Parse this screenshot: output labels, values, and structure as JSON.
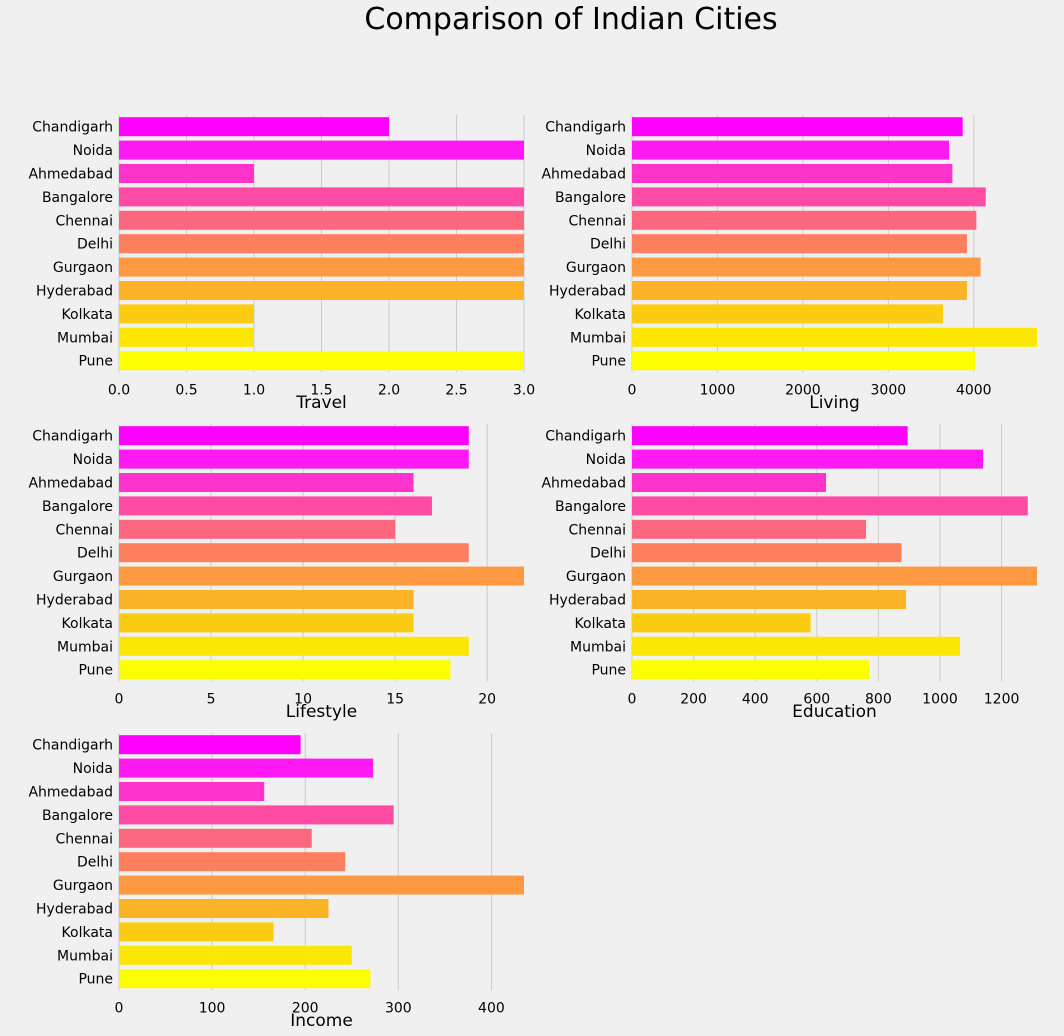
{
  "title": "Comparison of Indian Cities",
  "colors": [
    "#ff00ff",
    "#ff19f4",
    "#fe33cc",
    "#fe4ca5",
    "#fd667f",
    "#fd7f5d",
    "#fd9940",
    "#fcb326",
    "#fccc12",
    "#fce604",
    "#fcff00"
  ],
  "chart_data": [
    {
      "type": "bar",
      "orientation": "horizontal",
      "xlabel": "Travel",
      "categories": [
        "Chandigarh",
        "Noida",
        "Ahmedabad",
        "Bangalore",
        "Chennai",
        "Delhi",
        "Gurgaon",
        "Hyderabad",
        "Kolkata",
        "Mumbai",
        "Pune"
      ],
      "values": [
        2,
        3,
        1,
        3,
        3,
        3,
        3,
        3,
        1,
        1,
        3
      ],
      "xlim": [
        0,
        3
      ],
      "xticks": [
        0,
        0.5,
        1,
        1.5,
        2,
        2.5,
        3
      ],
      "xtick_labels": [
        "0.0",
        "0.5",
        "1.0",
        "1.5",
        "2.0",
        "2.5",
        "3.0"
      ],
      "grid": "vertical"
    },
    {
      "type": "bar",
      "orientation": "horizontal",
      "xlabel": "Living",
      "categories": [
        "Chandigarh",
        "Noida",
        "Ahmedabad",
        "Bangalore",
        "Chennai",
        "Delhi",
        "Gurgaon",
        "Hyderabad",
        "Kolkata",
        "Mumbai",
        "Pune"
      ],
      "values": [
        3870,
        3710,
        3750,
        4140,
        4030,
        3920,
        4080,
        3920,
        3640,
        4740,
        4020
      ],
      "xlim": [
        0,
        4740
      ],
      "xticks": [
        0,
        1000,
        2000,
        3000,
        4000
      ],
      "xtick_labels": [
        "0",
        "1000",
        "2000",
        "3000",
        "4000"
      ],
      "grid": "vertical"
    },
    {
      "type": "bar",
      "orientation": "horizontal",
      "xlabel": "Lifestyle",
      "categories": [
        "Chandigarh",
        "Noida",
        "Ahmedabad",
        "Bangalore",
        "Chennai",
        "Delhi",
        "Gurgaon",
        "Hyderabad",
        "Kolkata",
        "Mumbai",
        "Pune"
      ],
      "values": [
        19,
        19,
        16,
        17,
        15,
        19,
        22,
        16,
        16,
        19,
        18
      ],
      "xlim": [
        0,
        22
      ],
      "xticks": [
        0,
        5,
        10,
        15,
        20
      ],
      "xtick_labels": [
        "0",
        "5",
        "10",
        "15",
        "20"
      ],
      "grid": "vertical"
    },
    {
      "type": "bar",
      "orientation": "horizontal",
      "xlabel": "Education",
      "categories": [
        "Chandigarh",
        "Noida",
        "Ahmedabad",
        "Bangalore",
        "Chennai",
        "Delhi",
        "Gurgaon",
        "Hyderabad",
        "Kolkata",
        "Mumbai",
        "Pune"
      ],
      "values": [
        895,
        1140,
        630,
        1285,
        760,
        875,
        1315,
        890,
        580,
        1065,
        770
      ],
      "xlim": [
        0,
        1315
      ],
      "xticks": [
        0,
        200,
        400,
        600,
        800,
        1000,
        1200
      ],
      "xtick_labels": [
        "0",
        "200",
        "400",
        "600",
        "800",
        "1000",
        "1200"
      ],
      "grid": "vertical"
    },
    {
      "type": "bar",
      "orientation": "horizontal",
      "xlabel": "Income",
      "categories": [
        "Chandigarh",
        "Noida",
        "Ahmedabad",
        "Bangalore",
        "Chennai",
        "Delhi",
        "Gurgaon",
        "Hyderabad",
        "Kolkata",
        "Mumbai",
        "Pune"
      ],
      "values": [
        195,
        273,
        156,
        295,
        207,
        243,
        435,
        225,
        166,
        250,
        270
      ],
      "xlim": [
        0,
        435
      ],
      "xticks": [
        0,
        100,
        200,
        300,
        400
      ],
      "xtick_labels": [
        "0",
        "100",
        "200",
        "300",
        "400"
      ],
      "grid": "vertical"
    }
  ]
}
